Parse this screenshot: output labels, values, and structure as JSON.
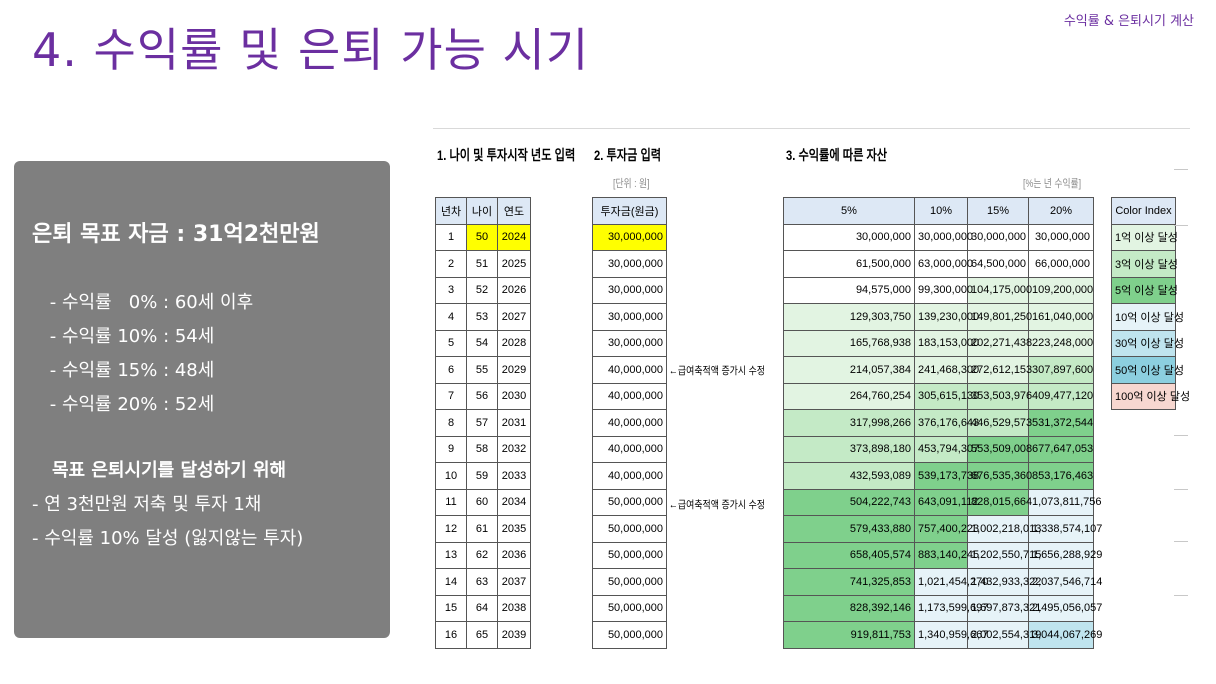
{
  "slide": {
    "title": "4. 수익률 및 은퇴 가능 시기",
    "corner_tag": "수익률 & 은퇴시기 계산"
  },
  "summary": {
    "heading": "은퇴 목표 자금 : 31억2천만원",
    "lines": [
      " - 수익률   0% : 60세 이후",
      " - 수익률 10% : 54세",
      " - 수익률 15% : 48세",
      " - 수익률 20% : 52세"
    ],
    "sub_heading": "목표 은퇴시기를 달성하기 위해",
    "goals": [
      "- 연 3천만원 저축 및 투자 1채",
      "- 수익률 10% 달성 (잃지않는 투자)"
    ]
  },
  "sheet": {
    "section1_title": "1. 나이 및 투자시작 년도 입력",
    "section2_title": "2. 투자금 입력",
    "section3_title": "3. 수익률에 따른 자산",
    "unit_note": "[단위 : 원]",
    "rate_note": "[%는 년 수익률]",
    "headers_left": [
      "년차",
      "나이",
      "연도"
    ],
    "header_invest": "투자금(원금)",
    "headers_rates": [
      "5%",
      "10%",
      "15%",
      "20%"
    ],
    "increase_note": "←급여축적액 증가시 수정",
    "rows": [
      {
        "n": "1",
        "age": "50",
        "year": "2024",
        "inv": "30,000,000",
        "v": [
          "30,000,000",
          "30,000,000",
          "30,000,000",
          "30,000,000"
        ]
      },
      {
        "n": "2",
        "age": "51",
        "year": "2025",
        "inv": "30,000,000",
        "v": [
          "61,500,000",
          "63,000,000",
          "64,500,000",
          "66,000,000"
        ]
      },
      {
        "n": "3",
        "age": "52",
        "year": "2026",
        "inv": "30,000,000",
        "v": [
          "94,575,000",
          "99,300,000",
          "104,175,000",
          "109,200,000"
        ]
      },
      {
        "n": "4",
        "age": "53",
        "year": "2027",
        "inv": "30,000,000",
        "v": [
          "129,303,750",
          "139,230,000",
          "149,801,250",
          "161,040,000"
        ]
      },
      {
        "n": "5",
        "age": "54",
        "year": "2028",
        "inv": "30,000,000",
        "v": [
          "165,768,938",
          "183,153,000",
          "202,271,438",
          "223,248,000"
        ]
      },
      {
        "n": "6",
        "age": "55",
        "year": "2029",
        "inv": "40,000,000",
        "v": [
          "214,057,384",
          "241,468,300",
          "272,612,153",
          "307,897,600"
        ]
      },
      {
        "n": "7",
        "age": "56",
        "year": "2030",
        "inv": "40,000,000",
        "v": [
          "264,760,254",
          "305,615,130",
          "353,503,976",
          "409,477,120"
        ]
      },
      {
        "n": "8",
        "age": "57",
        "year": "2031",
        "inv": "40,000,000",
        "v": [
          "317,998,266",
          "376,176,643",
          "446,529,573",
          "531,372,544"
        ]
      },
      {
        "n": "9",
        "age": "58",
        "year": "2032",
        "inv": "40,000,000",
        "v": [
          "373,898,180",
          "453,794,307",
          "553,509,008",
          "677,647,053"
        ]
      },
      {
        "n": "10",
        "age": "59",
        "year": "2033",
        "inv": "40,000,000",
        "v": [
          "432,593,089",
          "539,173,738",
          "676,535,360",
          "853,176,463"
        ]
      },
      {
        "n": "11",
        "age": "60",
        "year": "2034",
        "inv": "50,000,000",
        "v": [
          "504,222,743",
          "643,091,112",
          "828,015,664",
          "1,073,811,756"
        ]
      },
      {
        "n": "12",
        "age": "61",
        "year": "2035",
        "inv": "50,000,000",
        "v": [
          "579,433,880",
          "757,400,223",
          "1,002,218,013",
          "1,338,574,107"
        ]
      },
      {
        "n": "13",
        "age": "62",
        "year": "2036",
        "inv": "50,000,000",
        "v": [
          "658,405,574",
          "883,140,245",
          "1,202,550,715",
          "1,656,288,929"
        ]
      },
      {
        "n": "14",
        "age": "63",
        "year": "2037",
        "inv": "50,000,000",
        "v": [
          "741,325,853",
          "1,021,454,270",
          "1,432,933,322",
          "2,037,546,714"
        ]
      },
      {
        "n": "15",
        "age": "64",
        "year": "2038",
        "inv": "50,000,000",
        "v": [
          "828,392,146",
          "1,173,599,697",
          "1,697,873,321",
          "2,495,056,057"
        ]
      },
      {
        "n": "16",
        "age": "65",
        "year": "2039",
        "inv": "50,000,000",
        "v": [
          "919,811,753",
          "1,340,959,667",
          "2,002,554,319",
          "3,044,067,269"
        ]
      }
    ],
    "color_index": {
      "header": "Color Index",
      "items": [
        {
          "label": "1억 이상 달성",
          "color": "#e2f4e2"
        },
        {
          "label": "3억 이상 달성",
          "color": "#c4eac6"
        },
        {
          "label": "5억 이상 달성",
          "color": "#7fd08c"
        },
        {
          "label": "10억 이상 달성",
          "color": "#e6f3f8"
        },
        {
          "label": "30억 이상 달성",
          "color": "#bfe4ee"
        },
        {
          "label": "50억 이상 달성",
          "color": "#8ccfdf"
        },
        {
          "label": "100억 이상 달성",
          "color": "#f7d7d0"
        }
      ]
    },
    "colors": {
      "header_bg": "#dde8f5",
      "input_highlight": "#ffff00",
      "title_purple": "#6b2fa0",
      "panel_gray": "#7f7f7f"
    }
  }
}
